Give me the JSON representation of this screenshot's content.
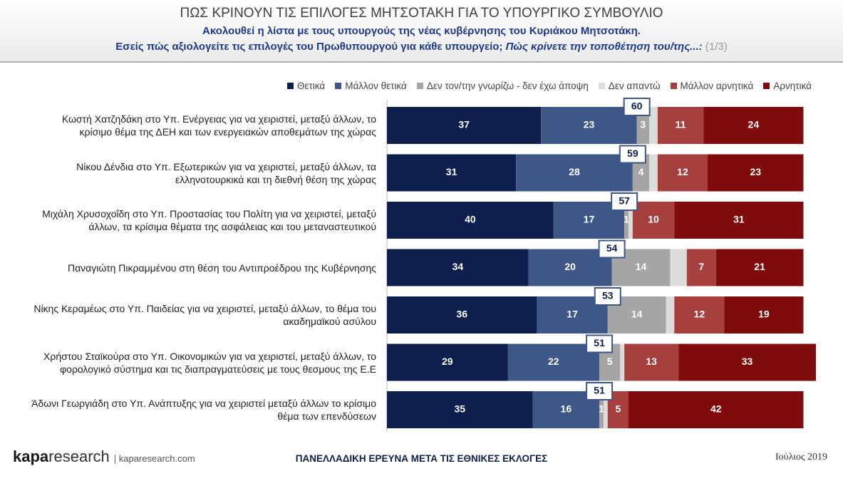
{
  "header": {
    "title": "ΠΩΣ ΚΡΙΝΟΥΝ ΤΙΣ ΕΠΙΛΟΓΕΣ ΜΗΤΣΟΤΑΚΗ ΓΙΑ ΤΟ ΥΠΟΥΡΓΙΚΟ ΣΥΜΒΟΥΛΙΟ",
    "subtitle": "Ακολουθεί η λίστα με τους υπουργούς της νέας κυβέρνησης του Κυριάκου Μητσοτάκη.",
    "question": "Εσείς πώς αξιολογείτε τις επιλογές του Πρωθυπουργού για κάθε υπουργείο;",
    "question_italic": "Πώς κρίνετε την τοποθέτηση του/της...:",
    "page": "(1/3)"
  },
  "chart_data": {
    "type": "stacked-bar-horizontal",
    "categories": [
      "Κωστή Χατζηδάκη στο Υπ. Ενέργειας για να χειριστεί, μεταξύ άλλων, το κρίσιμο θέμα της ΔΕΗ και των ενεργειακών αποθεμάτων της χώρας",
      "Νίκου Δένδια στο Υπ. Εξωτερικών για να χειριστεί, μεταξύ άλλων, τα ελληνοτουρκικά και τη διεθνή θέση της χώρας",
      "Μιχάλη Χρυσοχοΐδη στο Υπ. Προστασίας του Πολίτη για να χειριστεί, μεταξύ άλλων, τα κρίσιμα θέματα της ασφάλειας και του μεταναστευτικού",
      "Παναγιώτη Πικραμμένου στη θέση του Αντιπροέδρου της Κυβέρνησης",
      "Νίκης Κεραμέως στο Υπ. Παιδείας για να χειριστεί, μεταξύ άλλων, το θέμα του ακαδημαϊκού ασύλου",
      "Χρήστου Σταϊκούρα στο Υπ. Οικονομικών για να χειριστεί, μεταξύ άλλων, το φορολογικό σύστημα και τις διαπραγματεύσεις με τους θεσμους της Ε.Ε",
      "Άδωνι Γεωργιάδη στο Υπ. Ανάπτυξης για να χειριστεί μεταξύ άλλων το κρίσιμο θέμα των επενδύσεων"
    ],
    "series": [
      {
        "name": "Θετικά",
        "color": "#0e1f4d",
        "values": [
          37,
          31,
          40,
          34,
          36,
          29,
          35
        ]
      },
      {
        "name": "Μάλλον θετικά",
        "color": "#3e5688",
        "values": [
          23,
          28,
          17,
          20,
          17,
          22,
          16
        ]
      },
      {
        "name": "Δεν τον/την γνωρίζω - δεν έχω άποψη",
        "color": "#a5a5a5",
        "values": [
          3,
          4,
          1,
          14,
          14,
          5,
          1
        ]
      },
      {
        "name": "Δεν απαντώ",
        "color": "#dcdcdc",
        "labels": false,
        "values": [
          2,
          2,
          1,
          4,
          2,
          1,
          1
        ]
      },
      {
        "name": "Μάλλον αρνητικά",
        "color": "#a5403f",
        "values": [
          11,
          12,
          10,
          7,
          12,
          13,
          5
        ]
      },
      {
        "name": "Αρνητικά",
        "color": "#7f0b0b",
        "values": [
          24,
          23,
          31,
          21,
          19,
          33,
          42
        ]
      }
    ],
    "positive_totals": [
      60,
      59,
      57,
      54,
      53,
      51,
      51
    ],
    "xlim": [
      0,
      103
    ]
  },
  "footer": {
    "logo_bold": "kapa",
    "logo_light": "research",
    "site": "| kaparesearch.com",
    "center": "ΠΑΝΕΛΛΑΔΙΚΗ ΕΡΕΥΝΑ ΜΕΤΑ ΤΙΣ ΕΘΝΙΚΕΣ ΕΚΛΟΓΕΣ",
    "date": "Ιούλιος 2019"
  }
}
